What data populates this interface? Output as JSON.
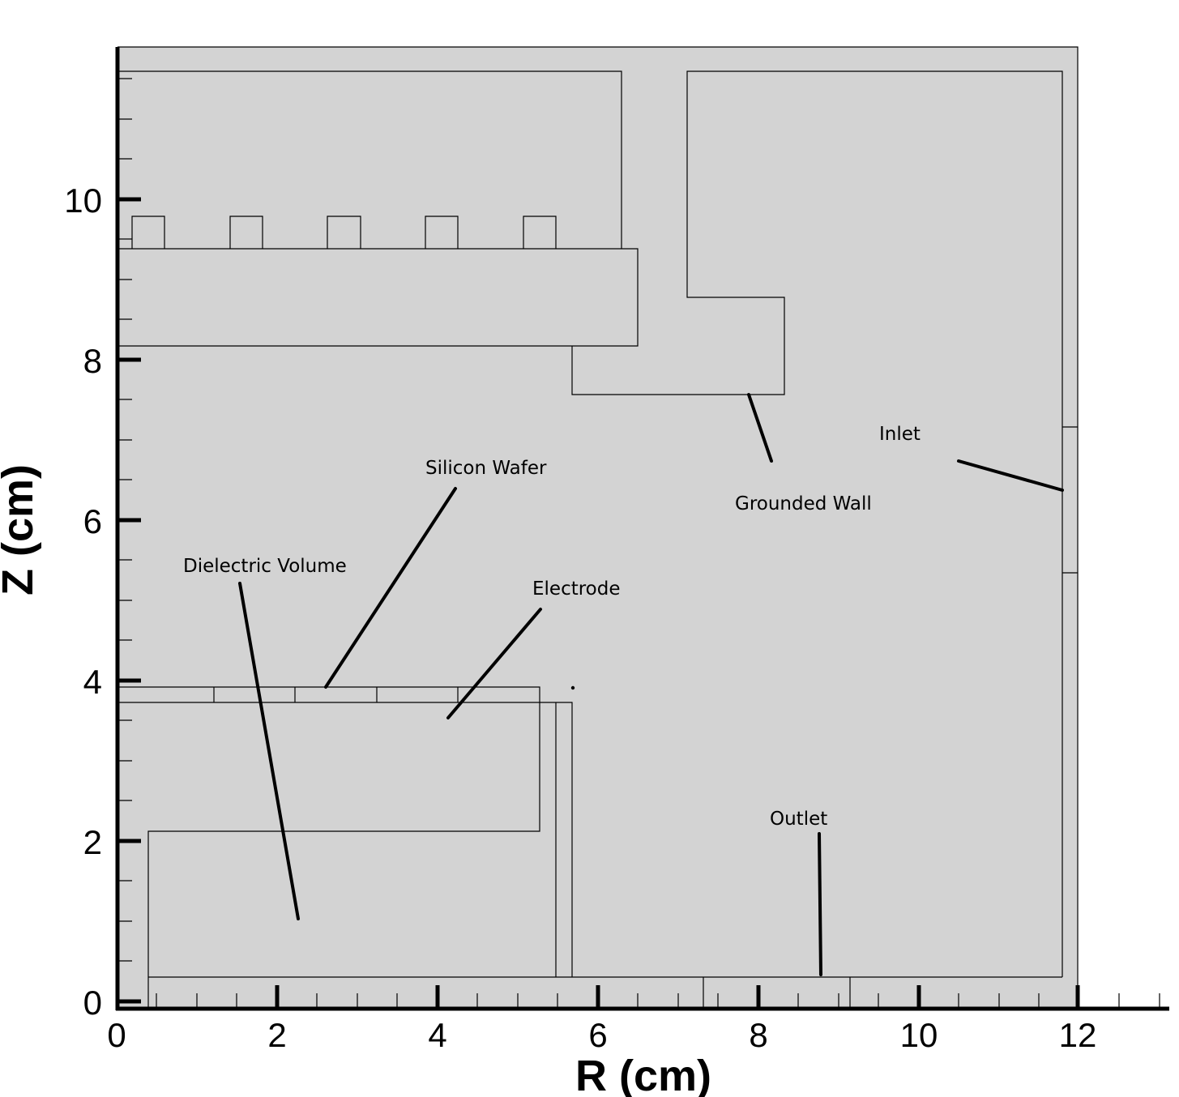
{
  "axes": {
    "x_title": "R (cm)",
    "y_title": "Z (cm)",
    "x_ticks": [
      "0",
      "2",
      "4",
      "6",
      "8",
      "10",
      "12"
    ],
    "y_ticks": [
      "0",
      "2",
      "4",
      "6",
      "8",
      "10"
    ]
  },
  "annotations": {
    "silicon_wafer": "Silicon Wafer",
    "dielectric_volume": "Dielectric Volume",
    "electrode": "Electrode",
    "grounded_wall": "Grounded Wall",
    "inlet": "Inlet",
    "outlet": "Outlet"
  },
  "colors": {
    "domain_fill": "#d3d3d3",
    "lines": "#000000"
  }
}
